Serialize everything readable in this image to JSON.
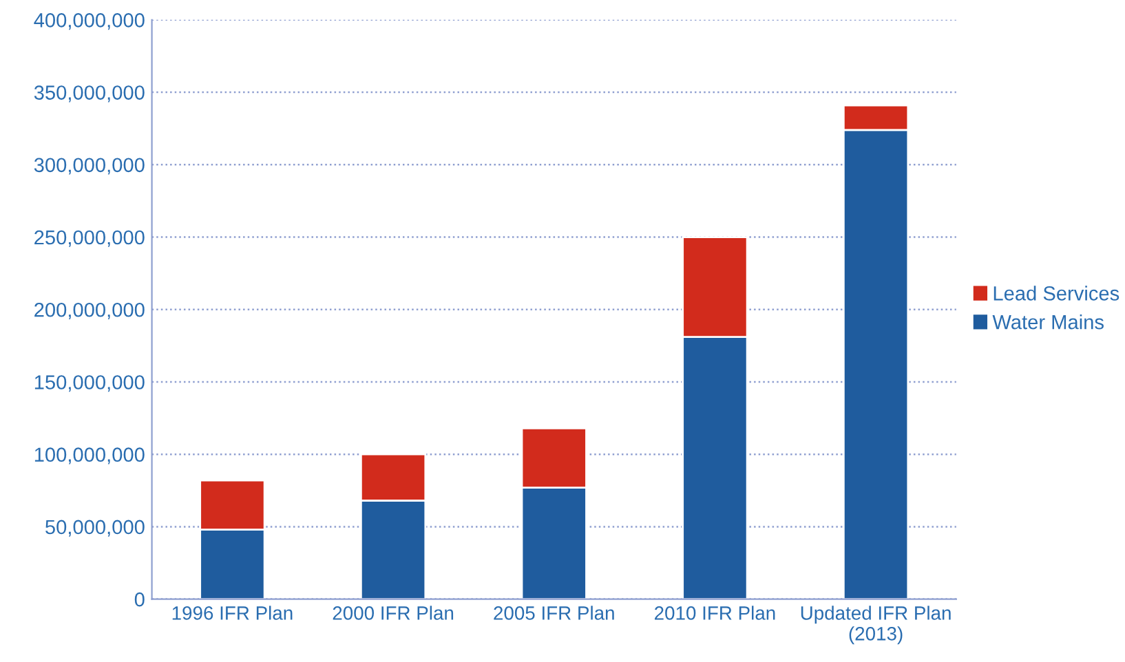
{
  "chart_data": {
    "type": "bar",
    "stacked": true,
    "categories": [
      "1996 IFR Plan",
      "2000 IFR Plan",
      "2005 IFR Plan",
      "2010 IFR Plan",
      "Updated IFR Plan\n(2013)"
    ],
    "series": [
      {
        "name": "Water Mains",
        "color": "#1f5c9e",
        "values": [
          48000000,
          68000000,
          77000000,
          181000000,
          324000000
        ]
      },
      {
        "name": "Lead Services",
        "color": "#d22b1c",
        "values": [
          34000000,
          32000000,
          41000000,
          69000000,
          17000000
        ]
      }
    ],
    "ylim": [
      0,
      400000000
    ],
    "yticks": [
      {
        "value": 0,
        "label": "0"
      },
      {
        "value": 50000000,
        "label": "50,000,000"
      },
      {
        "value": 100000000,
        "label": "100,000,000"
      },
      {
        "value": 150000000,
        "label": "150,000,000"
      },
      {
        "value": 200000000,
        "label": "200,000,000"
      },
      {
        "value": 250000000,
        "label": "250,000,000"
      },
      {
        "value": 300000000,
        "label": "300,000,000"
      },
      {
        "value": 350000000,
        "label": "350,000,000"
      },
      {
        "value": 400000000,
        "label": "400,000,000"
      }
    ],
    "grid": "y",
    "legend": "right"
  }
}
